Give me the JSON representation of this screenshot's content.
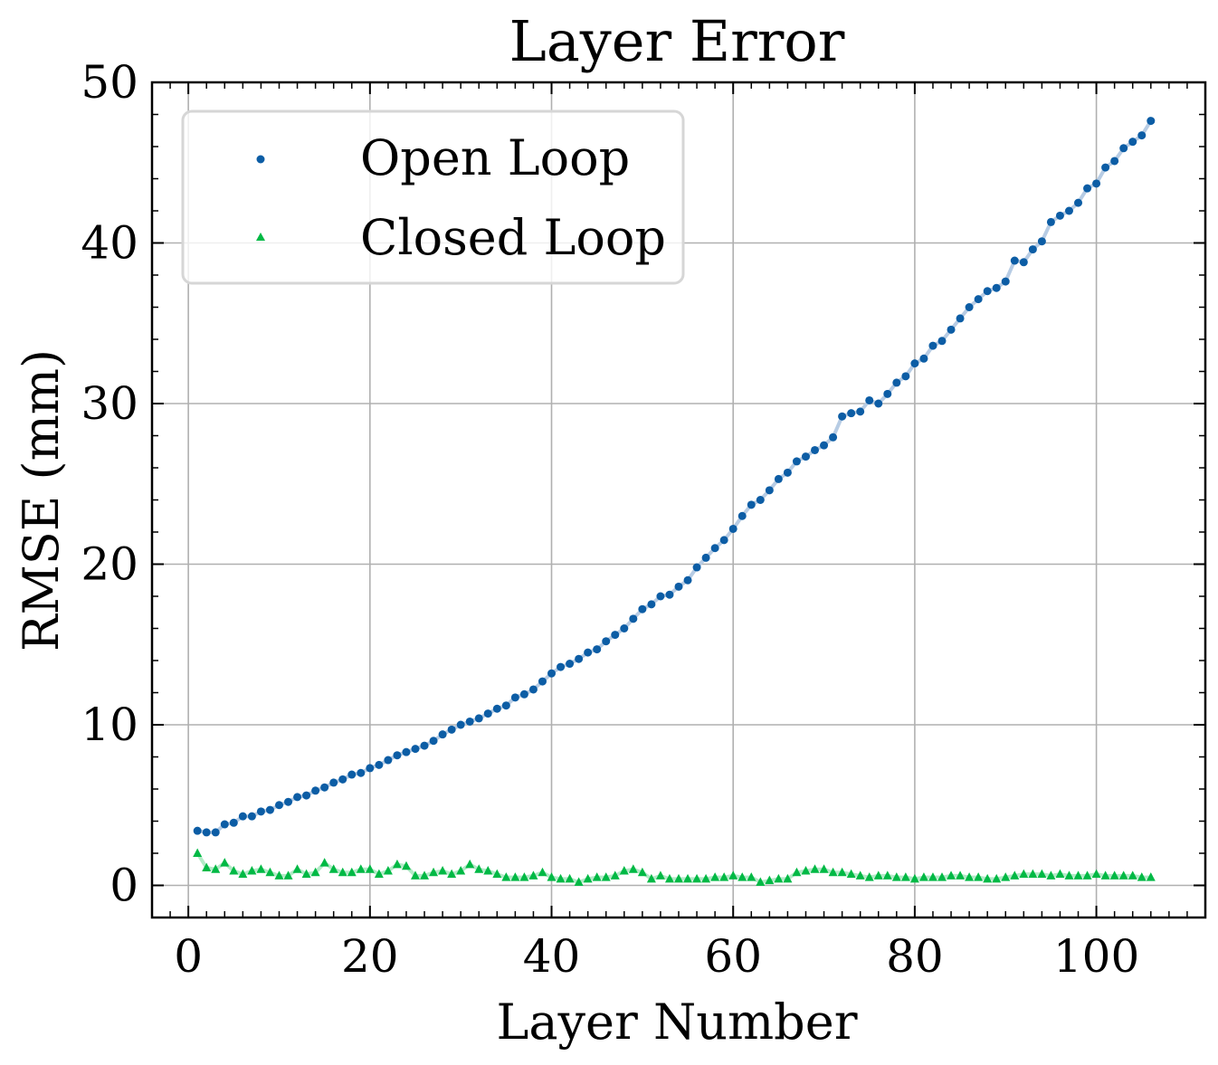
{
  "chart_data": {
    "type": "scatter",
    "title": "Layer Error",
    "xlabel": "Layer Number",
    "ylabel": "RMSE (mm)",
    "xlim": [
      -4,
      112
    ],
    "ylim": [
      -2,
      50
    ],
    "xticks": [
      0,
      20,
      40,
      60,
      80,
      100
    ],
    "yticks": [
      0,
      10,
      20,
      30,
      40,
      50
    ],
    "xtick_labels": [
      "0",
      "20",
      "40",
      "60",
      "80",
      "100"
    ],
    "ytick_labels": [
      "0",
      "10",
      "20",
      "30",
      "40",
      "50"
    ],
    "grid": true,
    "legend": "top-left",
    "series": [
      {
        "name": "Open Loop",
        "marker": "circle",
        "color": "#0C5DA5",
        "line_color": "#B7CCE4",
        "x": [
          1,
          2,
          3,
          4,
          5,
          6,
          7,
          8,
          9,
          10,
          11,
          12,
          13,
          14,
          15,
          16,
          17,
          18,
          19,
          20,
          21,
          22,
          23,
          24,
          25,
          26,
          27,
          28,
          29,
          30,
          31,
          32,
          33,
          34,
          35,
          36,
          37,
          38,
          39,
          40,
          41,
          42,
          43,
          44,
          45,
          46,
          47,
          48,
          49,
          50,
          51,
          52,
          53,
          54,
          55,
          56,
          57,
          58,
          59,
          60,
          61,
          62,
          63,
          64,
          65,
          66,
          67,
          68,
          69,
          70,
          71,
          72,
          73,
          74,
          75,
          76,
          77,
          78,
          79,
          80,
          81,
          82,
          83,
          84,
          85,
          86,
          87,
          88,
          89,
          90,
          91,
          92,
          93,
          94,
          95,
          96,
          97,
          98,
          99,
          100,
          101,
          102,
          103,
          104,
          105,
          106
        ],
        "y": [
          3.4,
          3.3,
          3.3,
          3.8,
          3.9,
          4.3,
          4.3,
          4.6,
          4.7,
          5.0,
          5.2,
          5.5,
          5.6,
          5.9,
          6.1,
          6.4,
          6.6,
          6.9,
          7.0,
          7.3,
          7.5,
          7.8,
          8.1,
          8.3,
          8.5,
          8.7,
          9.0,
          9.4,
          9.7,
          10.0,
          10.2,
          10.4,
          10.7,
          11.0,
          11.2,
          11.7,
          11.9,
          12.2,
          12.7,
          13.2,
          13.6,
          13.8,
          14.1,
          14.5,
          14.7,
          15.2,
          15.6,
          16.0,
          16.6,
          17.2,
          17.5,
          18.0,
          18.1,
          18.6,
          19.0,
          19.8,
          20.4,
          21.0,
          21.5,
          22.2,
          23.0,
          23.7,
          24.0,
          24.6,
          25.3,
          25.7,
          26.4,
          26.7,
          27.1,
          27.4,
          27.9,
          29.2,
          29.4,
          29.5,
          30.2,
          30.0,
          30.6,
          31.3,
          31.7,
          32.5,
          32.8,
          33.6,
          33.9,
          34.6,
          35.3,
          36.0,
          36.5,
          37.0,
          37.2,
          37.6,
          38.9,
          38.8,
          39.6,
          40.1,
          41.3,
          41.7,
          42.0,
          42.5,
          43.4,
          43.7,
          44.7,
          45.1,
          45.9,
          46.3,
          46.7,
          47.6
        ]
      },
      {
        "name": "Closed Loop",
        "marker": "triangle",
        "color": "#00B945",
        "line_color": "#B3EAC7",
        "x": [
          1,
          2,
          3,
          4,
          5,
          6,
          7,
          8,
          9,
          10,
          11,
          12,
          13,
          14,
          15,
          16,
          17,
          18,
          19,
          20,
          21,
          22,
          23,
          24,
          25,
          26,
          27,
          28,
          29,
          30,
          31,
          32,
          33,
          34,
          35,
          36,
          37,
          38,
          39,
          40,
          41,
          42,
          43,
          44,
          45,
          46,
          47,
          48,
          49,
          50,
          51,
          52,
          53,
          54,
          55,
          56,
          57,
          58,
          59,
          60,
          61,
          62,
          63,
          64,
          65,
          66,
          67,
          68,
          69,
          70,
          71,
          72,
          73,
          74,
          75,
          76,
          77,
          78,
          79,
          80,
          81,
          82,
          83,
          84,
          85,
          86,
          87,
          88,
          89,
          90,
          91,
          92,
          93,
          94,
          95,
          96,
          97,
          98,
          99,
          100,
          101,
          102,
          103,
          104,
          105,
          106
        ],
        "y": [
          2.0,
          1.1,
          1.0,
          1.4,
          0.9,
          0.7,
          0.9,
          1.0,
          0.8,
          0.6,
          0.6,
          1.0,
          0.7,
          0.8,
          1.4,
          1.0,
          0.8,
          0.8,
          1.0,
          1.0,
          0.7,
          0.9,
          1.3,
          1.2,
          0.6,
          0.6,
          0.8,
          0.9,
          0.7,
          0.9,
          1.3,
          1.0,
          0.9,
          0.7,
          0.5,
          0.5,
          0.5,
          0.6,
          0.8,
          0.5,
          0.4,
          0.4,
          0.2,
          0.4,
          0.5,
          0.5,
          0.6,
          0.9,
          1.0,
          0.8,
          0.4,
          0.6,
          0.4,
          0.4,
          0.4,
          0.4,
          0.4,
          0.5,
          0.5,
          0.6,
          0.5,
          0.5,
          0.2,
          0.3,
          0.4,
          0.4,
          0.8,
          0.9,
          1.0,
          1.0,
          0.8,
          0.8,
          0.7,
          0.6,
          0.5,
          0.6,
          0.6,
          0.5,
          0.5,
          0.4,
          0.5,
          0.5,
          0.5,
          0.6,
          0.6,
          0.5,
          0.5,
          0.4,
          0.4,
          0.5,
          0.6,
          0.7,
          0.7,
          0.7,
          0.6,
          0.7,
          0.6,
          0.6,
          0.6,
          0.7,
          0.6,
          0.6,
          0.6,
          0.6,
          0.5,
          0.5
        ]
      }
    ]
  }
}
